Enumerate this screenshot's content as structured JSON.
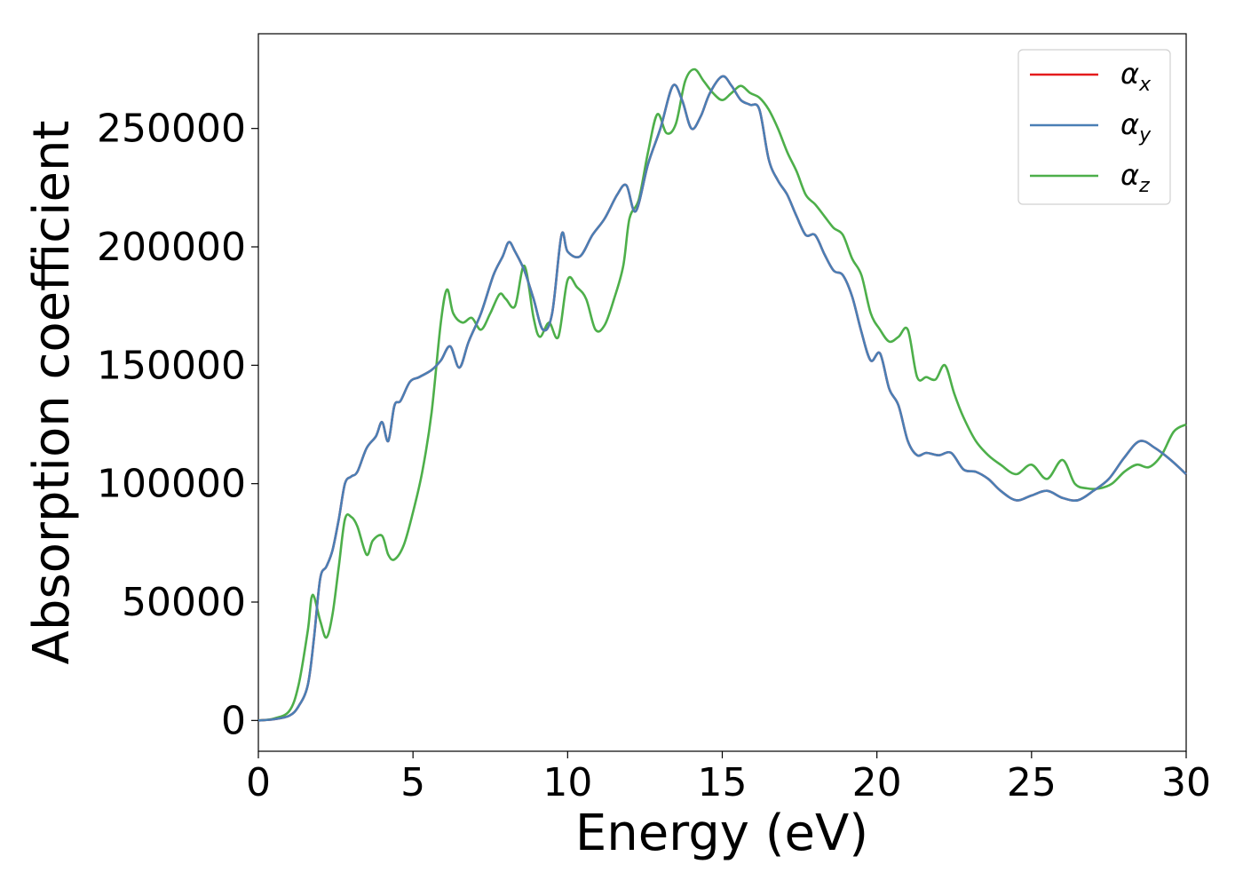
{
  "chart_data": {
    "type": "line",
    "xlabel": "Energy (eV)",
    "ylabel": "Absorption coefficient",
    "xlim": [
      0,
      30
    ],
    "ylim": [
      -13000,
      290000
    ],
    "xticks": [
      0,
      5,
      10,
      15,
      20,
      25,
      30
    ],
    "yticks": [
      0,
      50000,
      100000,
      150000,
      200000,
      250000
    ],
    "legend_position": "upper right",
    "grid": false,
    "series": [
      {
        "name": "αx",
        "legend_base": "α",
        "legend_sub": "x",
        "color": "#e41a1c",
        "x": [
          0,
          0.5,
          1.0,
          1.3,
          1.6,
          1.8,
          2.0,
          2.2,
          2.4,
          2.6,
          2.8,
          3.0,
          3.2,
          3.5,
          3.8,
          4.0,
          4.2,
          4.4,
          4.6,
          4.9,
          5.2,
          5.6,
          5.9,
          6.2,
          6.5,
          6.8,
          7.2,
          7.6,
          7.9,
          8.1,
          8.3,
          8.6,
          8.9,
          9.2,
          9.5,
          9.8,
          10.0,
          10.4,
          10.8,
          11.2,
          11.6,
          11.9,
          12.2,
          12.6,
          13.0,
          13.4,
          13.7,
          14.0,
          14.3,
          14.6,
          15.0,
          15.3,
          15.6,
          15.9,
          16.2,
          16.5,
          16.8,
          17.1,
          17.4,
          17.7,
          18.0,
          18.3,
          18.6,
          18.9,
          19.2,
          19.5,
          19.8,
          20.1,
          20.4,
          20.7,
          21.0,
          21.3,
          21.6,
          22.0,
          22.4,
          22.8,
          23.2,
          23.6,
          24.0,
          24.5,
          25.0,
          25.5,
          26.0,
          26.5,
          27.0,
          27.5,
          28.0,
          28.5,
          29.0,
          29.5,
          30.0
        ],
        "y": [
          0,
          500,
          2000,
          6000,
          15000,
          35000,
          60000,
          65000,
          72000,
          85000,
          100000,
          103000,
          105000,
          115000,
          120000,
          126000,
          118000,
          133000,
          135000,
          143000,
          145000,
          148000,
          152000,
          158000,
          149000,
          160000,
          172000,
          188000,
          196000,
          202000,
          198000,
          190000,
          178000,
          165000,
          172000,
          205000,
          198000,
          196000,
          205000,
          212000,
          222000,
          226000,
          215000,
          235000,
          250000,
          268000,
          262000,
          250000,
          255000,
          265000,
          272000,
          268000,
          262000,
          260000,
          258000,
          237000,
          228000,
          222000,
          213000,
          205000,
          205000,
          197000,
          190000,
          188000,
          179000,
          164000,
          152000,
          155000,
          140000,
          133000,
          118000,
          112000,
          113000,
          112000,
          113000,
          106000,
          105000,
          102000,
          97000,
          93000,
          95000,
          97000,
          94000,
          93000,
          97000,
          102000,
          111000,
          118000,
          115000,
          110000,
          104000
        ]
      },
      {
        "name": "αy",
        "legend_base": "α",
        "legend_sub": "y",
        "color": "#4a7fb5",
        "x": [
          0,
          0.5,
          1.0,
          1.3,
          1.6,
          1.8,
          2.0,
          2.2,
          2.4,
          2.6,
          2.8,
          3.0,
          3.2,
          3.5,
          3.8,
          4.0,
          4.2,
          4.4,
          4.6,
          4.9,
          5.2,
          5.6,
          5.9,
          6.2,
          6.5,
          6.8,
          7.2,
          7.6,
          7.9,
          8.1,
          8.3,
          8.6,
          8.9,
          9.2,
          9.5,
          9.8,
          10.0,
          10.4,
          10.8,
          11.2,
          11.6,
          11.9,
          12.2,
          12.6,
          13.0,
          13.4,
          13.7,
          14.0,
          14.3,
          14.6,
          15.0,
          15.3,
          15.6,
          15.9,
          16.2,
          16.5,
          16.8,
          17.1,
          17.4,
          17.7,
          18.0,
          18.3,
          18.6,
          18.9,
          19.2,
          19.5,
          19.8,
          20.1,
          20.4,
          20.7,
          21.0,
          21.3,
          21.6,
          22.0,
          22.4,
          22.8,
          23.2,
          23.6,
          24.0,
          24.5,
          25.0,
          25.5,
          26.0,
          26.5,
          27.0,
          27.5,
          28.0,
          28.5,
          29.0,
          29.5,
          30.0
        ],
        "y": [
          0,
          500,
          2000,
          6000,
          15000,
          35000,
          60000,
          65000,
          72000,
          85000,
          100000,
          103000,
          105000,
          115000,
          120000,
          126000,
          118000,
          133000,
          135000,
          143000,
          145000,
          148000,
          152000,
          158000,
          149000,
          160000,
          172000,
          188000,
          196000,
          202000,
          198000,
          190000,
          178000,
          165000,
          172000,
          205000,
          198000,
          196000,
          205000,
          212000,
          222000,
          226000,
          215000,
          235000,
          250000,
          268000,
          262000,
          250000,
          255000,
          265000,
          272000,
          268000,
          262000,
          260000,
          258000,
          237000,
          228000,
          222000,
          213000,
          205000,
          205000,
          197000,
          190000,
          188000,
          179000,
          164000,
          152000,
          155000,
          140000,
          133000,
          118000,
          112000,
          113000,
          112000,
          113000,
          106000,
          105000,
          102000,
          97000,
          93000,
          95000,
          97000,
          94000,
          93000,
          97000,
          102000,
          111000,
          118000,
          115000,
          110000,
          104000
        ]
      },
      {
        "name": "αz",
        "legend_base": "α",
        "legend_sub": "z",
        "color": "#4daf4a",
        "x": [
          0,
          0.5,
          1.0,
          1.3,
          1.6,
          1.75,
          2.0,
          2.2,
          2.4,
          2.6,
          2.8,
          3.0,
          3.2,
          3.5,
          3.7,
          4.0,
          4.2,
          4.4,
          4.7,
          5.0,
          5.3,
          5.6,
          5.9,
          6.1,
          6.3,
          6.6,
          6.9,
          7.2,
          7.5,
          7.8,
          8.0,
          8.3,
          8.6,
          8.9,
          9.1,
          9.4,
          9.7,
          10.0,
          10.3,
          10.6,
          10.9,
          11.2,
          11.5,
          11.8,
          12.0,
          12.3,
          12.6,
          12.9,
          13.2,
          13.5,
          13.8,
          14.1,
          14.4,
          14.7,
          15.0,
          15.3,
          15.6,
          15.9,
          16.2,
          16.5,
          16.8,
          17.1,
          17.4,
          17.7,
          18.0,
          18.3,
          18.6,
          18.9,
          19.2,
          19.5,
          19.8,
          20.1,
          20.4,
          20.7,
          21.0,
          21.3,
          21.6,
          21.9,
          22.2,
          22.5,
          22.8,
          23.2,
          23.6,
          24.0,
          24.5,
          25.0,
          25.5,
          26.0,
          26.4,
          26.8,
          27.2,
          27.6,
          28.0,
          28.4,
          28.8,
          29.2,
          29.6,
          30.0
        ],
        "y": [
          0,
          800,
          4000,
          15000,
          38000,
          53000,
          42000,
          35000,
          45000,
          65000,
          85000,
          86000,
          82000,
          70000,
          76000,
          78000,
          70000,
          68000,
          74000,
          88000,
          105000,
          130000,
          168000,
          182000,
          172000,
          168000,
          170000,
          165000,
          172000,
          180000,
          178000,
          175000,
          192000,
          170000,
          162000,
          168000,
          162000,
          186000,
          183000,
          178000,
          165000,
          167000,
          178000,
          192000,
          212000,
          220000,
          240000,
          256000,
          248000,
          252000,
          270000,
          275000,
          270000,
          265000,
          262000,
          265000,
          268000,
          265000,
          263000,
          258000,
          250000,
          240000,
          232000,
          222000,
          218000,
          213000,
          208000,
          205000,
          195000,
          188000,
          172000,
          165000,
          160000,
          162000,
          165000,
          145000,
          145000,
          144000,
          150000,
          138000,
          128000,
          118000,
          112000,
          108000,
          104000,
          108000,
          102000,
          110000,
          100000,
          98000,
          98000,
          100000,
          105000,
          108000,
          107000,
          112000,
          122000,
          125000
        ]
      }
    ]
  }
}
